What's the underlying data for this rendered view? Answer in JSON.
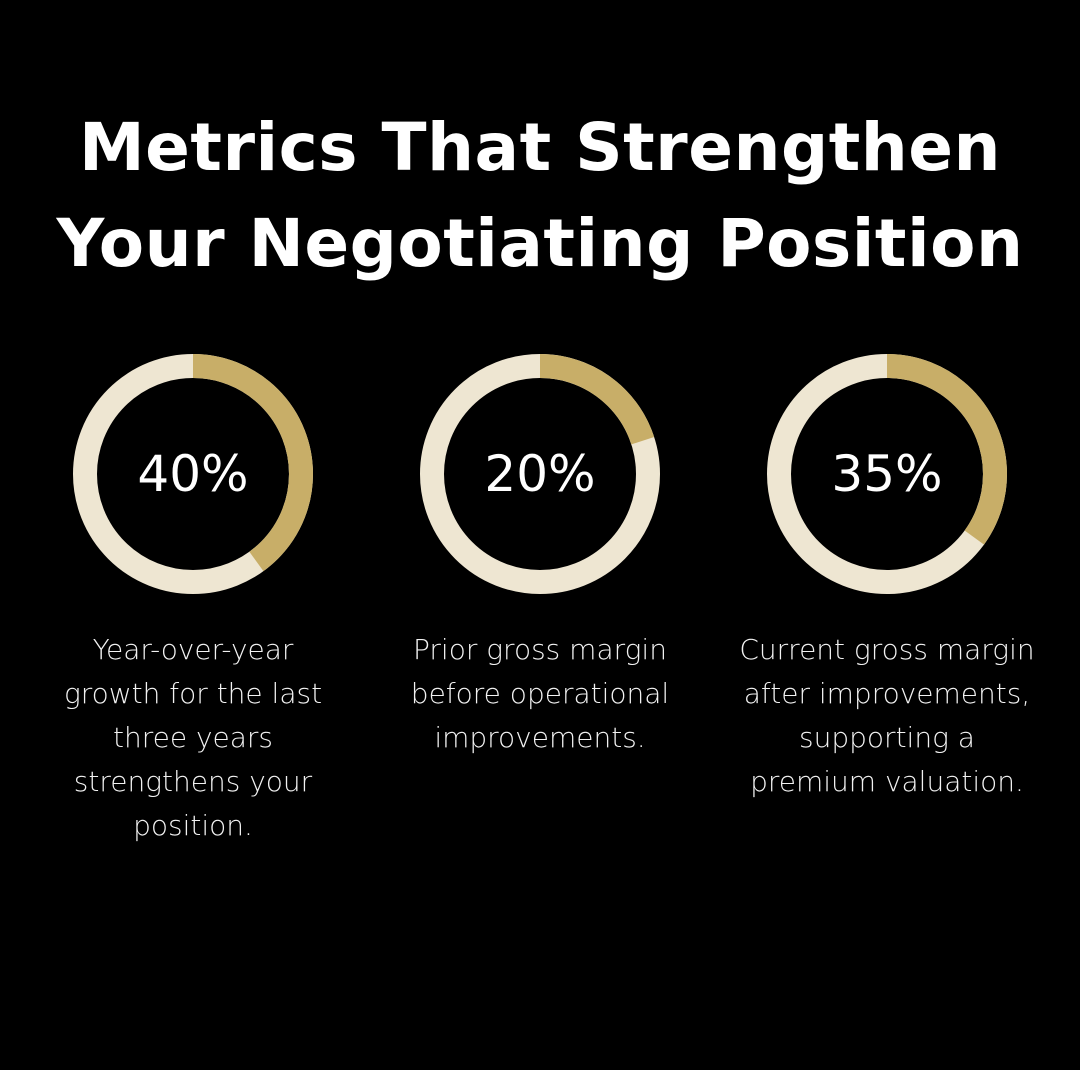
{
  "title": "Metrics That Strengthen Your Negotiating Position",
  "colors": {
    "background": "#000000",
    "filled": "#C8AE68",
    "remaining": "#EEE6D2",
    "text": "#FFFFFF"
  },
  "chart_data": [
    {
      "type": "pie",
      "style": "donut",
      "value": 40,
      "label": "40%",
      "description": "Year-over-year growth for the last three years strengthens your position."
    },
    {
      "type": "pie",
      "style": "donut",
      "value": 20,
      "label": "20%",
      "description": "Prior gross margin before operational improvements."
    },
    {
      "type": "pie",
      "style": "donut",
      "value": 35,
      "label": "35%",
      "description": "Current gross margin after improvements, supporting a premium valuation."
    }
  ]
}
